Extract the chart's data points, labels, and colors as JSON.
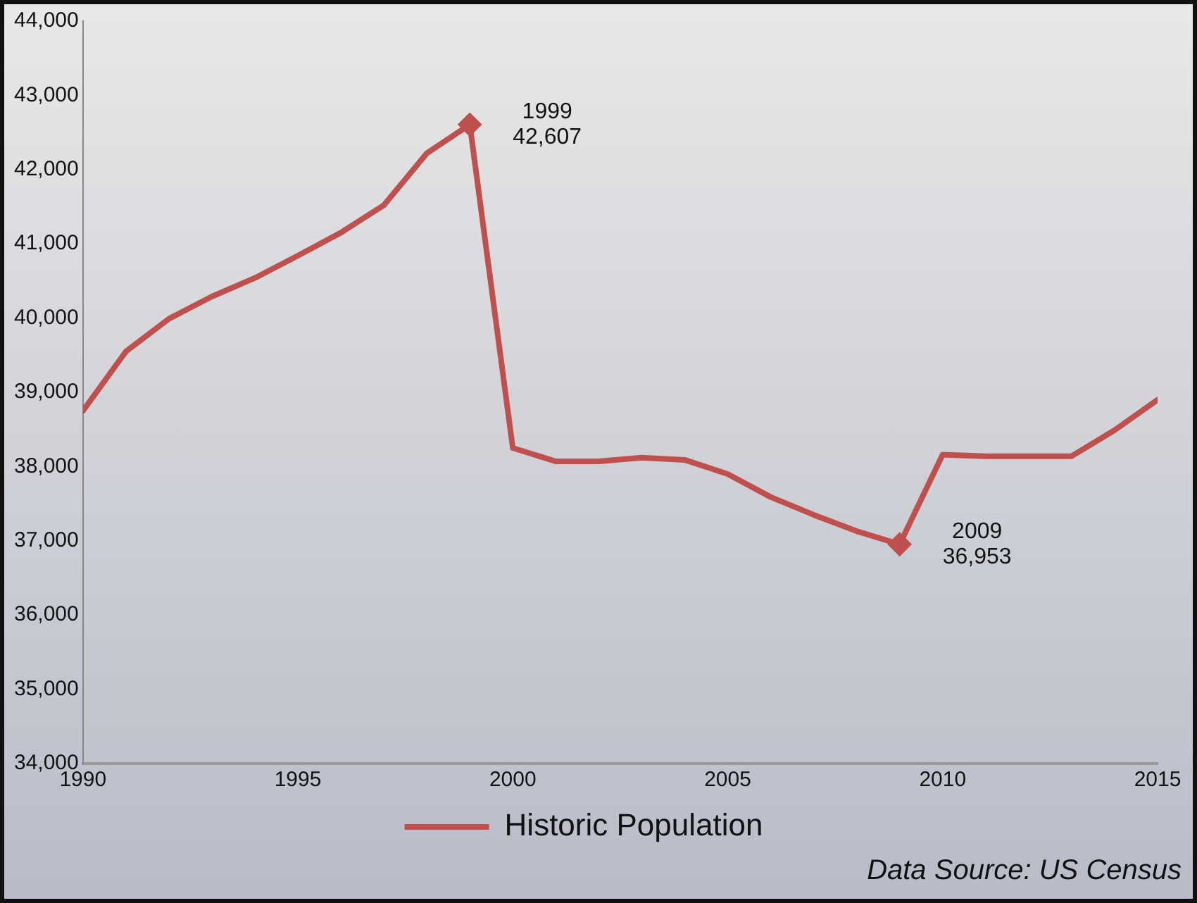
{
  "chart_data": {
    "type": "line",
    "xlim": [
      1990,
      2015
    ],
    "xticks": [
      1990,
      1995,
      2000,
      2005,
      2010,
      2015
    ],
    "ylim": [
      34000,
      44000
    ],
    "yticks": [
      {
        "value": 34000,
        "label": "34,000"
      },
      {
        "value": 35000,
        "label": "35,000"
      },
      {
        "value": 36000,
        "label": "36,000"
      },
      {
        "value": 37000,
        "label": "37,000"
      },
      {
        "value": 38000,
        "label": "38,000"
      },
      {
        "value": 39000,
        "label": "39,000"
      },
      {
        "value": 40000,
        "label": "40,000"
      },
      {
        "value": 41000,
        "label": "41,000"
      },
      {
        "value": 42000,
        "label": "42,000"
      },
      {
        "value": 43000,
        "label": "43,000"
      },
      {
        "value": 44000,
        "label": "44,000"
      }
    ],
    "grid": false,
    "legend": "bottom",
    "marker": "none",
    "line_style": "solid",
    "x": [
      1990,
      1991,
      1992,
      1993,
      1994,
      1995,
      1996,
      1997,
      1998,
      1999,
      2000,
      2001,
      2002,
      2003,
      2004,
      2005,
      2006,
      2007,
      2008,
      2009,
      2010,
      2011,
      2012,
      2013,
      2014,
      2015
    ],
    "series": [
      {
        "name": "Historic Population",
        "color": "#c0504d",
        "values": [
          38750,
          39550,
          39990,
          40290,
          40540,
          40840,
          41150,
          41520,
          42220,
          42607,
          38250,
          38070,
          38070,
          38120,
          38090,
          37900,
          37590,
          37350,
          37130,
          36953,
          38160,
          38140,
          38140,
          38140,
          38490,
          38900
        ]
      },
      {
        "type": "scatter",
        "marker": "diamond",
        "color": "#c0504d",
        "x": [
          1999,
          2009
        ],
        "values": [
          42607,
          36953
        ]
      }
    ],
    "annotations": [
      {
        "text": "1999\n42,607",
        "x": 1999,
        "y": 42607
      },
      {
        "text": "2009\n36,953",
        "x": 2009,
        "y": 36953
      },
      "Data Source: US Census"
    ]
  }
}
